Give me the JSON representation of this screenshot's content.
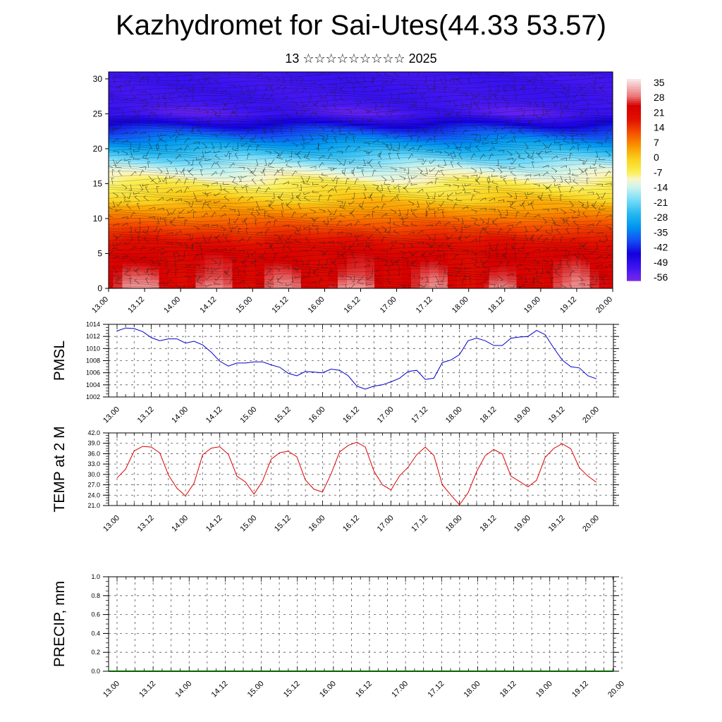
{
  "header": {
    "title": "Kazhydromet for Sai-Utes(44.33 53.57)",
    "subtitle": "13 ☆☆☆☆☆☆☆☆☆ 2025"
  },
  "chart_data": [
    {
      "type": "heatmap",
      "title": "",
      "xlabel": "",
      "ylabel": "",
      "x_tick_labels": [
        "13.00",
        "13.12",
        "14.00",
        "14.12",
        "15.00",
        "15.12",
        "16.00",
        "16.12",
        "17.00",
        "17.12",
        "18.00",
        "18.12",
        "19.00",
        "19.12",
        "20.00"
      ],
      "y_ticks": [
        0,
        5,
        10,
        15,
        20,
        25,
        30
      ],
      "ylim": [
        0,
        31
      ],
      "colorbar_labels": [
        "35",
        "28",
        "21",
        "14",
        "7",
        "0",
        "-7",
        "-14",
        "-21",
        "-28",
        "-35",
        "-42",
        "-49",
        "-56"
      ],
      "colorbar_range": [
        -63,
        42
      ],
      "surface_temp_by_hour": [
        29,
        32,
        37,
        38,
        38,
        37,
        30,
        26,
        24,
        28,
        36,
        38,
        38,
        36,
        30,
        28,
        24,
        28,
        35,
        37,
        37,
        35,
        29,
        26,
        25,
        31,
        37,
        39,
        39,
        37,
        31,
        27,
        26,
        30,
        33,
        36,
        38,
        36,
        27,
        24,
        21,
        25,
        31,
        36,
        37,
        36,
        30,
        28,
        26,
        28,
        35,
        37,
        39,
        37,
        32,
        30,
        27
      ],
      "profile": [
        {
          "z": 0,
          "t": 28
        },
        {
          "z": 5,
          "t": 26
        },
        {
          "z": 9,
          "t": 14
        },
        {
          "z": 13,
          "t": 0
        },
        {
          "z": 15,
          "t": -7
        },
        {
          "z": 17,
          "t": -14
        },
        {
          "z": 20,
          "t": -30
        },
        {
          "z": 23,
          "t": -46
        },
        {
          "z": 25,
          "t": -58
        },
        {
          "z": 27,
          "t": -56
        },
        {
          "z": 31,
          "t": -56
        }
      ],
      "wind_vectors": true,
      "colors": {
        "low": "#7a2ae0",
        "mid": "#f5f538",
        "high": "#d90000",
        "peak": "#f7dcdc"
      }
    },
    {
      "type": "line",
      "ylabel": "PMSL",
      "ylim": [
        1002,
        1014
      ],
      "y_tick_labels": [
        "1002",
        "1004",
        "1006",
        "1008",
        "1010",
        "1012",
        "1014"
      ],
      "x_tick_labels": [
        "13.00",
        "13.12",
        "14.00",
        "14.12",
        "15.00",
        "15.12",
        "16.00",
        "16.12",
        "17.00",
        "17.12",
        "18.00",
        "18.12",
        "19.00",
        "19.12",
        "20.00"
      ],
      "series": [
        {
          "color": "#0000cc",
          "values": [
            1012.9,
            1013.4,
            1013.3,
            1012.8,
            1011.8,
            1011.3,
            1011.6,
            1011.6,
            1010.9,
            1011.2,
            1010.6,
            1009.4,
            1007.9,
            1007.1,
            1007.6,
            1007.6,
            1007.8,
            1007.8,
            1007.3,
            1006.9,
            1005.9,
            1005.5,
            1006.2,
            1006.1,
            1006.0,
            1006.6,
            1006.4,
            1005.5,
            1003.8,
            1003.3,
            1003.8,
            1004.0,
            1004.5,
            1005.1,
            1006.2,
            1006.4,
            1004.9,
            1005.1,
            1007.7,
            1008.1,
            1009.0,
            1011.3,
            1011.7,
            1011.3,
            1010.5,
            1010.5,
            1011.7,
            1011.9,
            1012.0,
            1013.0,
            1012.3,
            1010.1,
            1008.1,
            1007.0,
            1006.8,
            1005.5,
            1005.0
          ]
        }
      ]
    },
    {
      "type": "line",
      "ylabel": "TEMP at 2 M",
      "ylim": [
        21,
        42
      ],
      "y_tick_labels": [
        "21.0",
        "24.0",
        "27.0",
        "30.0",
        "33.0",
        "36.0",
        "39.0",
        "42.0"
      ],
      "x_tick_labels": [
        "13.00",
        "13.12",
        "14.00",
        "14.12",
        "15.00",
        "15.12",
        "16.00",
        "16.12",
        "17.00",
        "17.12",
        "18.00",
        "18.12",
        "19.00",
        "19.12",
        "20.00"
      ],
      "series": [
        {
          "color": "#dd0000",
          "values": [
            29.0,
            31.5,
            36.8,
            38.1,
            37.9,
            36.2,
            29.8,
            26.0,
            23.8,
            27.5,
            35.7,
            37.6,
            38.0,
            35.8,
            29.5,
            27.8,
            24.3,
            28.1,
            34.4,
            36.3,
            36.7,
            35.1,
            28.4,
            25.7,
            24.9,
            30.2,
            36.5,
            38.4,
            39.3,
            37.9,
            31.0,
            27.0,
            25.5,
            29.6,
            32.1,
            35.7,
            37.9,
            35.5,
            27.0,
            24.0,
            21.2,
            24.7,
            30.8,
            35.4,
            37.2,
            35.9,
            29.5,
            28.0,
            26.4,
            28.3,
            34.9,
            37.5,
            38.9,
            37.4,
            31.9,
            29.5,
            27.7
          ]
        }
      ]
    },
    {
      "type": "line",
      "ylabel": "PRECIP, mm",
      "ylim": [
        0,
        1
      ],
      "y_tick_labels": [
        "0.0",
        "0.2",
        "0.4",
        "0.6",
        "0.8",
        "1.0"
      ],
      "x_tick_labels": [
        "13.00",
        "13.12",
        "14.00",
        "14.12",
        "15.00",
        "15.12",
        "16.00",
        "16.12",
        "17.00",
        "17.12",
        "18.00",
        "18.12",
        "19.00",
        "19.12",
        "20.00"
      ],
      "series": [
        {
          "color": "#006600",
          "values": [
            0,
            0,
            0,
            0,
            0,
            0,
            0,
            0,
            0,
            0,
            0,
            0,
            0,
            0,
            0,
            0,
            0,
            0,
            0,
            0,
            0,
            0,
            0,
            0,
            0,
            0,
            0,
            0,
            0,
            0,
            0,
            0,
            0,
            0,
            0,
            0,
            0,
            0,
            0,
            0,
            0,
            0,
            0,
            0,
            0,
            0,
            0,
            0,
            0,
            0,
            0,
            0,
            0,
            0,
            0,
            0,
            0
          ]
        }
      ]
    }
  ]
}
